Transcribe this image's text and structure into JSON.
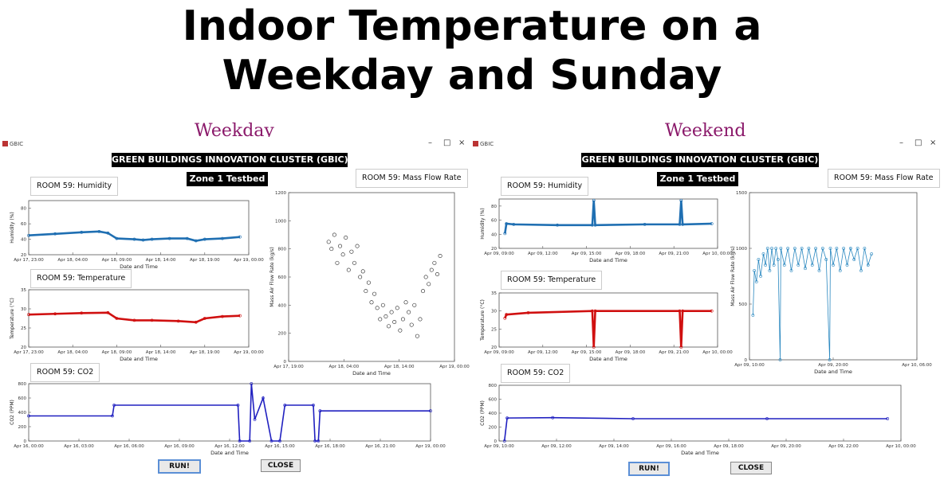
{
  "slide": {
    "title_line1": "Indoor Temperature on a",
    "title_line2": "Weekday and Sunday"
  },
  "weekday": {
    "link": "Weekday",
    "app_title": "GBIC",
    "banner": "GREEN BUILDINGS INNOVATION CLUSTER (GBIC)",
    "zone": "Zone 1 Testbed",
    "humidity_label": "ROOM 59: Humidity",
    "temperature_label": "ROOM 59: Temperature",
    "massflow_label": "ROOM 59: Mass Flow Rate",
    "co2_label": "ROOM 59: CO2",
    "run_button": "RUN!",
    "close_button": "CLOSE"
  },
  "weekend": {
    "link": "Weekend",
    "app_title": "GBIC",
    "banner": "GREEN BUILDINGS INNOVATION CLUSTER (GBIC)",
    "zone": "Zone 1 Testbed",
    "humidity_label": "ROOM 59: Humidity",
    "temperature_label": "ROOM 59: Temperature",
    "massflow_label": "ROOM 59: Mass Flow Rate",
    "co2_label": "ROOM 59: CO2",
    "run_button": "RUN!",
    "close_button": "CLOSE"
  },
  "window_controls": {
    "minimize": "–",
    "maximize": "□",
    "close": "×"
  },
  "chart_data": [
    {
      "id": "wd_hum",
      "panel": "weekday",
      "type": "line",
      "color": "#1f6fb2",
      "ylabel": "Humidity (%)",
      "xlabel": "Date and Time",
      "yticks": [
        "20",
        "40",
        "60",
        "80"
      ],
      "ylim": [
        20,
        90
      ],
      "xticks": [
        "Apr 17, 23:00",
        "Apr 18, 04:00",
        "Apr 18, 09:00",
        "Apr 18, 14:00",
        "Apr 18, 19:00",
        "Apr 19, 00:00"
      ],
      "xlim": [
        0,
        25
      ],
      "series": [
        {
          "points": [
            [
              0,
              45
            ],
            [
              3,
              47
            ],
            [
              6,
              49
            ],
            [
              8,
              50
            ],
            [
              9,
              48
            ],
            [
              10,
              41
            ],
            [
              12,
              40
            ],
            [
              13,
              39
            ],
            [
              14,
              40
            ],
            [
              16,
              41
            ],
            [
              18,
              41
            ],
            [
              19,
              38
            ],
            [
              20,
              40
            ],
            [
              22,
              41
            ],
            [
              24,
              43
            ]
          ]
        }
      ]
    },
    {
      "id": "wd_temp",
      "panel": "weekday",
      "type": "line",
      "color": "#d01010",
      "ylabel": "Temperature (°C)",
      "xlabel": "Date and Time",
      "yticks": [
        "20",
        "25",
        "30",
        "35"
      ],
      "ylim": [
        20,
        35
      ],
      "xticks": [
        "Apr 17, 23:00",
        "Apr 18, 04:00",
        "Apr 18, 09:00",
        "Apr 18, 14:00",
        "Apr 18, 19:00",
        "Apr 19, 00:00"
      ],
      "xlim": [
        0,
        25
      ],
      "series": [
        {
          "points": [
            [
              0,
              28.5
            ],
            [
              3,
              28.7
            ],
            [
              6,
              28.9
            ],
            [
              9,
              29
            ],
            [
              10,
              27.5
            ],
            [
              12,
              27
            ],
            [
              14,
              27
            ],
            [
              17,
              26.8
            ],
            [
              19,
              26.5
            ],
            [
              20,
              27.5
            ],
            [
              22,
              28
            ],
            [
              24,
              28.2
            ]
          ]
        }
      ]
    },
    {
      "id": "wd_mass",
      "panel": "weekday",
      "type": "scatter",
      "color": "#222222",
      "ylabel": "Mass Air Flow Rate (kg/s)",
      "xlabel": "Date and Time",
      "yticks": [
        "0",
        "200",
        "400",
        "600",
        "800",
        "1000",
        "1200"
      ],
      "ylim": [
        0,
        1200
      ],
      "xticks": [
        "Apr 17, 19:00",
        "Apr 18, 04:00",
        "Apr 18, 14:00",
        "Apr 19, 00:00"
      ],
      "xlim": [
        0,
        29
      ],
      "series": [
        {
          "points": [
            [
              7,
              850
            ],
            [
              7.5,
              800
            ],
            [
              8,
              900
            ],
            [
              8.5,
              700
            ],
            [
              9,
              820
            ],
            [
              9.5,
              760
            ],
            [
              10,
              880
            ],
            [
              10.5,
              650
            ],
            [
              11,
              780
            ],
            [
              11.5,
              700
            ],
            [
              12,
              820
            ],
            [
              12.5,
              600
            ],
            [
              13,
              640
            ],
            [
              13.5,
              500
            ],
            [
              14,
              560
            ],
            [
              14.5,
              420
            ],
            [
              15,
              480
            ],
            [
              15.5,
              380
            ],
            [
              16,
              300
            ],
            [
              16.5,
              400
            ],
            [
              17,
              320
            ],
            [
              17.5,
              250
            ],
            [
              18,
              350
            ],
            [
              18.5,
              280
            ],
            [
              19,
              380
            ],
            [
              19.5,
              220
            ],
            [
              20,
              300
            ],
            [
              20.5,
              420
            ],
            [
              21,
              350
            ],
            [
              21.5,
              260
            ],
            [
              22,
              400
            ],
            [
              22.5,
              180
            ],
            [
              23,
              300
            ],
            [
              23.5,
              500
            ],
            [
              24,
              600
            ],
            [
              24.5,
              550
            ],
            [
              25,
              650
            ],
            [
              25.5,
              700
            ],
            [
              26,
              620
            ],
            [
              26.5,
              750
            ]
          ]
        }
      ]
    },
    {
      "id": "wd_co2",
      "panel": "weekday",
      "type": "line",
      "color": "#2020c0",
      "ylabel": "CO2 (PPM)",
      "xlabel": "Date and Time",
      "yticks": [
        "0",
        "200",
        "400",
        "600",
        "800"
      ],
      "ylim": [
        0,
        800
      ],
      "xticks": [
        "Apr 16, 00:00",
        "Apr 16, 03:00",
        "Apr 16, 06:00",
        "Apr 16, 09:00",
        "Apr 16, 12:00",
        "Apr 16, 15:00",
        "Apr 16, 18:00",
        "Apr 16, 21:00",
        "Apr 19, 00:00"
      ],
      "xlim": [
        0,
        24
      ],
      "series": [
        {
          "points": [
            [
              0,
              350
            ],
            [
              5,
              350
            ],
            [
              5.1,
              500
            ],
            [
              12.5,
              500
            ],
            [
              12.6,
              0
            ],
            [
              13.2,
              0
            ],
            [
              13.3,
              800
            ],
            [
              13.5,
              300
            ],
            [
              14,
              600
            ],
            [
              14.5,
              0
            ],
            [
              15,
              0
            ],
            [
              15.3,
              500
            ],
            [
              17,
              500
            ],
            [
              17.1,
              0
            ],
            [
              17.3,
              0
            ],
            [
              17.4,
              420
            ],
            [
              24,
              420
            ]
          ]
        }
      ]
    },
    {
      "id": "we_hum",
      "panel": "weekend",
      "type": "line",
      "color": "#1f6fb2",
      "ylabel": "Humidity (%)",
      "xlabel": "Date and Time",
      "yticks": [
        "20",
        "40",
        "60",
        "80"
      ],
      "ylim": [
        20,
        90
      ],
      "xticks": [
        "Apr 09, 09:00",
        "Apr 09, 12:00",
        "Apr 09, 15:00",
        "Apr 09, 18:00",
        "Apr 09, 21:00",
        "Apr 10, 00:00"
      ],
      "xlim": [
        0,
        15
      ],
      "series": [
        {
          "points": [
            [
              0.4,
              41
            ],
            [
              0.5,
              55
            ],
            [
              1,
              54
            ],
            [
              4,
              53
            ],
            [
              6.4,
              53
            ],
            [
              6.5,
              88
            ],
            [
              6.6,
              53
            ],
            [
              10,
              54
            ],
            [
              12.4,
              54
            ],
            [
              12.5,
              88
            ],
            [
              12.6,
              54
            ],
            [
              14.6,
              55
            ]
          ]
        }
      ]
    },
    {
      "id": "we_temp",
      "panel": "weekend",
      "type": "line",
      "color": "#d01010",
      "ylabel": "Temperature (°C)",
      "xlabel": "Date and Time",
      "yticks": [
        "20",
        "25",
        "30",
        "35"
      ],
      "ylim": [
        20,
        35
      ],
      "xticks": [
        "Apr 09, 09:00",
        "Apr 09, 12:00",
        "Apr 09, 15:00",
        "Apr 09, 18:00",
        "Apr 09, 21:00",
        "Apr 10, 00:00"
      ],
      "xlim": [
        0,
        15
      ],
      "series": [
        {
          "points": [
            [
              0.4,
              28
            ],
            [
              0.5,
              29
            ],
            [
              2,
              29.5
            ],
            [
              6.4,
              30
            ],
            [
              6.5,
              20
            ],
            [
              6.6,
              30
            ],
            [
              12.4,
              30
            ],
            [
              12.5,
              20
            ],
            [
              12.6,
              30
            ],
            [
              14.6,
              30
            ]
          ]
        }
      ]
    },
    {
      "id": "we_mass",
      "panel": "weekend",
      "type": "line",
      "color": "#2a88c0",
      "ylabel": "Mass Air Flow Rate (kg/s)",
      "xlabel": "Date and Time",
      "yticks": [
        "0",
        "500",
        "1000",
        "1500"
      ],
      "ylim": [
        0,
        1500
      ],
      "xticks": [
        "Apr 09, 10:00",
        "Apr 09, 20:00",
        "Apr 10, 06:00"
      ],
      "xlim": [
        0,
        24
      ],
      "series": [
        {
          "points": [
            [
              0.5,
              400
            ],
            [
              0.7,
              800
            ],
            [
              1,
              700
            ],
            [
              1.3,
              900
            ],
            [
              1.6,
              750
            ],
            [
              2,
              950
            ],
            [
              2.3,
              850
            ],
            [
              2.6,
              1000
            ],
            [
              2.9,
              800
            ],
            [
              3.2,
              1000
            ],
            [
              3.5,
              850
            ],
            [
              3.8,
              1000
            ],
            [
              4.1,
              900
            ],
            [
              4.4,
              0
            ],
            [
              4.5,
              1000
            ],
            [
              5,
              850
            ],
            [
              5.5,
              1000
            ],
            [
              6,
              800
            ],
            [
              6.5,
              1000
            ],
            [
              7,
              850
            ],
            [
              7.5,
              1000
            ],
            [
              8,
              820
            ],
            [
              8.5,
              1000
            ],
            [
              9,
              850
            ],
            [
              9.5,
              1000
            ],
            [
              10,
              800
            ],
            [
              10.5,
              1000
            ],
            [
              11,
              900
            ],
            [
              11.5,
              0
            ],
            [
              11.6,
              1000
            ],
            [
              12,
              850
            ],
            [
              12.5,
              1000
            ],
            [
              13,
              800
            ],
            [
              13.5,
              1000
            ],
            [
              14,
              850
            ],
            [
              14.5,
              1000
            ],
            [
              15,
              900
            ],
            [
              15.5,
              1000
            ],
            [
              16,
              800
            ],
            [
              16.5,
              1000
            ],
            [
              17,
              850
            ],
            [
              17.5,
              950
            ]
          ]
        }
      ]
    },
    {
      "id": "we_co2",
      "panel": "weekend",
      "type": "line",
      "color": "#2020c0",
      "ylabel": "CO2 (PPM)",
      "xlabel": "Date and Time",
      "yticks": [
        "0",
        "200",
        "400",
        "600",
        "800"
      ],
      "ylim": [
        0,
        800
      ],
      "xticks": [
        "Apr 09, 10:00",
        "Apr 09, 12:00",
        "Apr 09, 14:00",
        "Apr 09, 16:00",
        "Apr 09, 18:00",
        "Apr 09, 20:00",
        "Apr 09, 22:00",
        "Apr 10, 00:00"
      ],
      "xlim": [
        0,
        15
      ],
      "series": [
        {
          "points": [
            [
              0.2,
              0
            ],
            [
              0.3,
              330
            ],
            [
              2,
              335
            ],
            [
              5,
              320
            ],
            [
              10,
              320
            ],
            [
              14.5,
              320
            ]
          ]
        }
      ]
    }
  ]
}
